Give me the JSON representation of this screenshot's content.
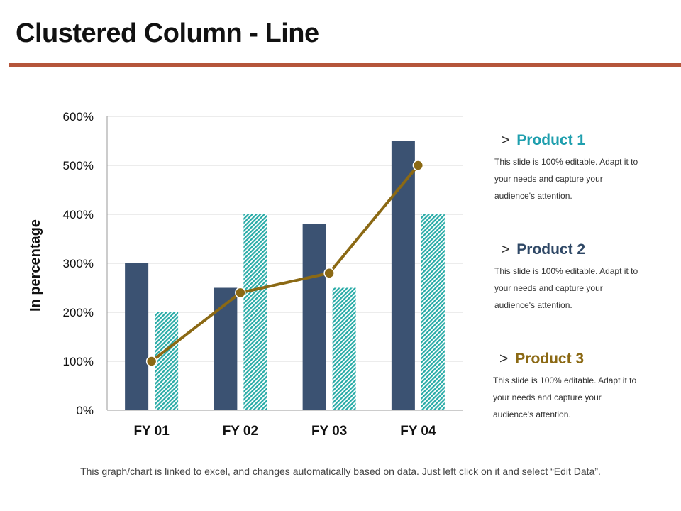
{
  "title": "Clustered Column - Line",
  "colors": {
    "rule": "#b5553a",
    "product1": "#3b5272",
    "product2": "#27aaa6",
    "product3": "#8b6914",
    "legend1_title": "#1f9fae",
    "legend2_title": "#2f4866",
    "legend3_title": "#8b6914"
  },
  "chart_data": {
    "type": "bar",
    "title": "",
    "xlabel": "",
    "ylabel": "In percentage",
    "ylim": [
      0,
      600
    ],
    "yticks": [
      0,
      100,
      200,
      300,
      400,
      500,
      600
    ],
    "ytick_labels": [
      "0%",
      "100%",
      "200%",
      "300%",
      "400%",
      "500%",
      "600%"
    ],
    "grid": true,
    "categories": [
      "FY 01",
      "FY 02",
      "FY 03",
      "FY 04"
    ],
    "series": [
      {
        "name": "Product 1",
        "type": "bar",
        "values": [
          300,
          250,
          380,
          550
        ]
      },
      {
        "name": "Product 2",
        "type": "bar",
        "pattern": "diagonal-hatch",
        "values": [
          200,
          400,
          250,
          400
        ]
      },
      {
        "name": "Product 3",
        "type": "line",
        "values": [
          100,
          240,
          280,
          500
        ]
      }
    ]
  },
  "legend": [
    {
      "chevron": ">",
      "name": "Product 1",
      "desc_line1": "This slide is 100% editable. Adapt it to",
      "desc_line2": "your needs and capture your",
      "desc_line3": "audience's attention."
    },
    {
      "chevron": ">",
      "name": "Product 2",
      "desc_line1": "This slide is 100% editable. Adapt it to",
      "desc_line2": "your needs and capture your",
      "desc_line3": "audience's attention."
    },
    {
      "chevron": ">",
      "name": "Product 3",
      "desc_line1": "This slide is 100% editable. Adapt it to",
      "desc_line2": "your needs and capture your",
      "desc_line3": "audience's attention."
    }
  ],
  "footer": "This graph/chart is linked to excel, and changes automatically  based on data. Just left click on it and select “Edit Data”."
}
